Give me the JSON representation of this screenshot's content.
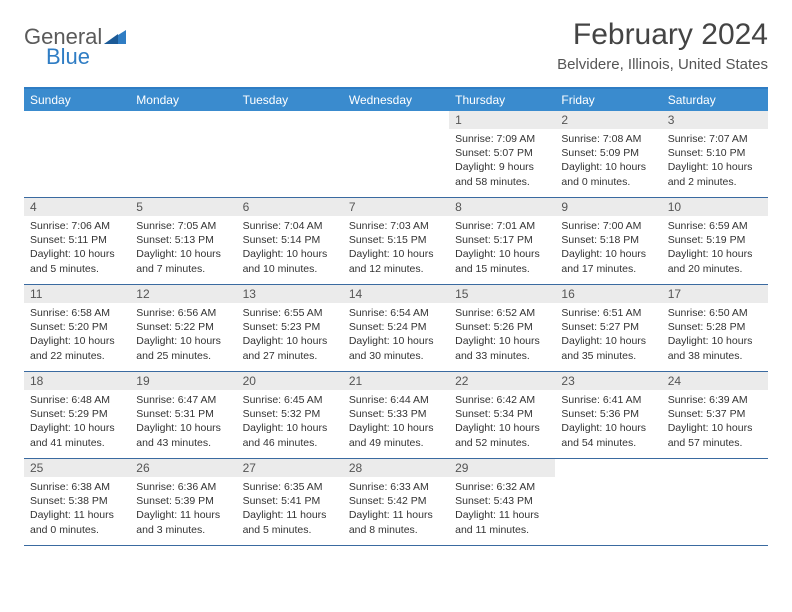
{
  "logo": {
    "word1": "General",
    "word2": "Blue"
  },
  "title": "February 2024",
  "location": "Belvidere, Illinois, United States",
  "colors": {
    "header_bg": "#3a8bce",
    "border_top": "#2f7dc4",
    "week_border": "#3a6aa0",
    "daynum_bg": "#ebebeb",
    "text": "#333333",
    "logo_gray": "#5a5a5a",
    "logo_blue": "#2f7dc4"
  },
  "day_headers": [
    "Sunday",
    "Monday",
    "Tuesday",
    "Wednesday",
    "Thursday",
    "Friday",
    "Saturday"
  ],
  "weeks": [
    [
      {
        "empty": true
      },
      {
        "empty": true
      },
      {
        "empty": true
      },
      {
        "empty": true
      },
      {
        "n": "1",
        "sunrise": "7:09 AM",
        "sunset": "5:07 PM",
        "daylight": "9 hours and 58 minutes."
      },
      {
        "n": "2",
        "sunrise": "7:08 AM",
        "sunset": "5:09 PM",
        "daylight": "10 hours and 0 minutes."
      },
      {
        "n": "3",
        "sunrise": "7:07 AM",
        "sunset": "5:10 PM",
        "daylight": "10 hours and 2 minutes."
      }
    ],
    [
      {
        "n": "4",
        "sunrise": "7:06 AM",
        "sunset": "5:11 PM",
        "daylight": "10 hours and 5 minutes."
      },
      {
        "n": "5",
        "sunrise": "7:05 AM",
        "sunset": "5:13 PM",
        "daylight": "10 hours and 7 minutes."
      },
      {
        "n": "6",
        "sunrise": "7:04 AM",
        "sunset": "5:14 PM",
        "daylight": "10 hours and 10 minutes."
      },
      {
        "n": "7",
        "sunrise": "7:03 AM",
        "sunset": "5:15 PM",
        "daylight": "10 hours and 12 minutes."
      },
      {
        "n": "8",
        "sunrise": "7:01 AM",
        "sunset": "5:17 PM",
        "daylight": "10 hours and 15 minutes."
      },
      {
        "n": "9",
        "sunrise": "7:00 AM",
        "sunset": "5:18 PM",
        "daylight": "10 hours and 17 minutes."
      },
      {
        "n": "10",
        "sunrise": "6:59 AM",
        "sunset": "5:19 PM",
        "daylight": "10 hours and 20 minutes."
      }
    ],
    [
      {
        "n": "11",
        "sunrise": "6:58 AM",
        "sunset": "5:20 PM",
        "daylight": "10 hours and 22 minutes."
      },
      {
        "n": "12",
        "sunrise": "6:56 AM",
        "sunset": "5:22 PM",
        "daylight": "10 hours and 25 minutes."
      },
      {
        "n": "13",
        "sunrise": "6:55 AM",
        "sunset": "5:23 PM",
        "daylight": "10 hours and 27 minutes."
      },
      {
        "n": "14",
        "sunrise": "6:54 AM",
        "sunset": "5:24 PM",
        "daylight": "10 hours and 30 minutes."
      },
      {
        "n": "15",
        "sunrise": "6:52 AM",
        "sunset": "5:26 PM",
        "daylight": "10 hours and 33 minutes."
      },
      {
        "n": "16",
        "sunrise": "6:51 AM",
        "sunset": "5:27 PM",
        "daylight": "10 hours and 35 minutes."
      },
      {
        "n": "17",
        "sunrise": "6:50 AM",
        "sunset": "5:28 PM",
        "daylight": "10 hours and 38 minutes."
      }
    ],
    [
      {
        "n": "18",
        "sunrise": "6:48 AM",
        "sunset": "5:29 PM",
        "daylight": "10 hours and 41 minutes."
      },
      {
        "n": "19",
        "sunrise": "6:47 AM",
        "sunset": "5:31 PM",
        "daylight": "10 hours and 43 minutes."
      },
      {
        "n": "20",
        "sunrise": "6:45 AM",
        "sunset": "5:32 PM",
        "daylight": "10 hours and 46 minutes."
      },
      {
        "n": "21",
        "sunrise": "6:44 AM",
        "sunset": "5:33 PM",
        "daylight": "10 hours and 49 minutes."
      },
      {
        "n": "22",
        "sunrise": "6:42 AM",
        "sunset": "5:34 PM",
        "daylight": "10 hours and 52 minutes."
      },
      {
        "n": "23",
        "sunrise": "6:41 AM",
        "sunset": "5:36 PM",
        "daylight": "10 hours and 54 minutes."
      },
      {
        "n": "24",
        "sunrise": "6:39 AM",
        "sunset": "5:37 PM",
        "daylight": "10 hours and 57 minutes."
      }
    ],
    [
      {
        "n": "25",
        "sunrise": "6:38 AM",
        "sunset": "5:38 PM",
        "daylight": "11 hours and 0 minutes."
      },
      {
        "n": "26",
        "sunrise": "6:36 AM",
        "sunset": "5:39 PM",
        "daylight": "11 hours and 3 minutes."
      },
      {
        "n": "27",
        "sunrise": "6:35 AM",
        "sunset": "5:41 PM",
        "daylight": "11 hours and 5 minutes."
      },
      {
        "n": "28",
        "sunrise": "6:33 AM",
        "sunset": "5:42 PM",
        "daylight": "11 hours and 8 minutes."
      },
      {
        "n": "29",
        "sunrise": "6:32 AM",
        "sunset": "5:43 PM",
        "daylight": "11 hours and 11 minutes."
      },
      {
        "empty": true
      },
      {
        "empty": true
      }
    ]
  ],
  "labels": {
    "sunrise": "Sunrise:",
    "sunset": "Sunset:",
    "daylight": "Daylight:"
  }
}
